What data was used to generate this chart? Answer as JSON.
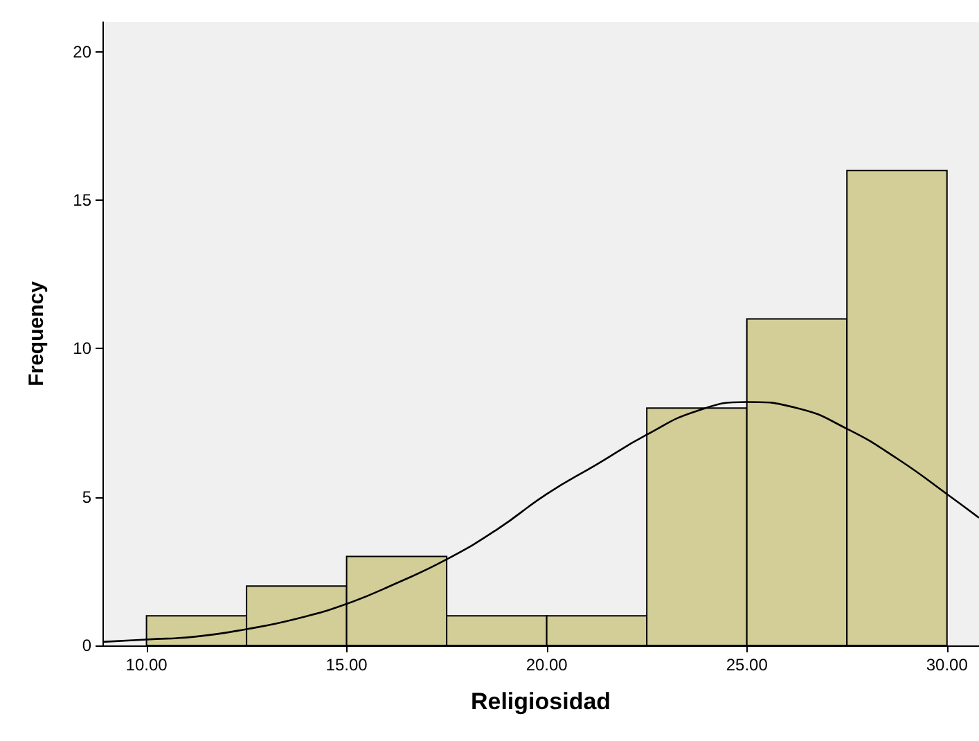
{
  "chart_data": {
    "type": "histogram",
    "xlabel": "Religiosidad",
    "ylabel": "Frequency",
    "bins": [
      10,
      12.5,
      15,
      17.5,
      20,
      22.5,
      25,
      27.5,
      30
    ],
    "values": [
      1,
      2,
      3,
      1,
      1,
      8,
      11,
      16
    ],
    "color": "#d3ce97",
    "series": [
      {
        "type": "line",
        "color": "#000000",
        "x": [
          8.9,
          10,
          11.25,
          12.5,
          13.75,
          15,
          16.25,
          17.5,
          18.75,
          20,
          21.25,
          22.5,
          23.75,
          25,
          26.25,
          27.5,
          28.75,
          30,
          30.8
        ],
        "values": [
          0.12,
          0.2,
          0.3,
          0.55,
          0.9,
          1.4,
          2.1,
          2.9,
          3.9,
          5.1,
          6.1,
          7.1,
          7.9,
          8.2,
          8.0,
          7.3,
          6.3,
          5.1,
          4.3
        ]
      }
    ],
    "xlim": [
      8.9,
      30.8
    ],
    "ylim": [
      0,
      21
    ],
    "xticks": [
      {
        "value": 10,
        "label": "10.00"
      },
      {
        "value": 15,
        "label": "15.00"
      },
      {
        "value": 20,
        "label": "20.00"
      },
      {
        "value": 25,
        "label": "25.00"
      },
      {
        "value": 30,
        "label": "30.00"
      }
    ],
    "yticks": [
      0,
      5,
      10,
      15,
      20
    ],
    "grid": false,
    "legend": false,
    "marker": "none",
    "line_style": "solid"
  }
}
